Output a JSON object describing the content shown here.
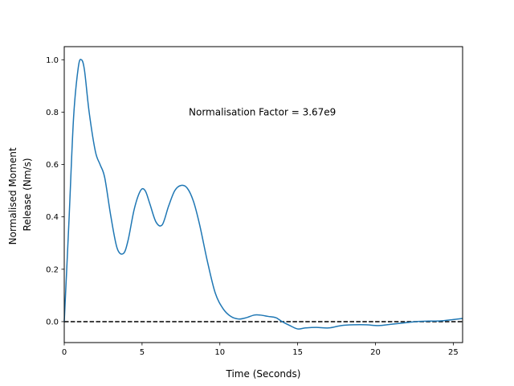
{
  "chart_data": {
    "type": "line",
    "title": "",
    "xlabel": "Time (Seconds)",
    "ylabel_lines": [
      "Normalised Moment",
      "Release (Nm/s)"
    ],
    "xlim": [
      0,
      25.6
    ],
    "ylim": [
      -0.08,
      1.05
    ],
    "xticks": [
      0,
      5,
      10,
      15,
      20,
      25
    ],
    "yticks": [
      0.0,
      0.2,
      0.4,
      0.6,
      0.8,
      1.0
    ],
    "grid": false,
    "annotation": {
      "text": "Normalisation Factor = 3.67e9",
      "x": 8.0,
      "y": 0.8
    },
    "reference_line": {
      "y": 0.0,
      "style": "dashed",
      "color": "#000000"
    },
    "series": [
      {
        "color": "#1f77b4",
        "x": [
          0,
          0.3,
          0.6,
          0.9,
          1.1,
          1.3,
          1.6,
          2.0,
          2.3,
          2.6,
          3.0,
          3.4,
          3.8,
          4.1,
          4.5,
          4.9,
          5.2,
          5.5,
          5.9,
          6.3,
          6.7,
          7.1,
          7.5,
          7.9,
          8.3,
          8.7,
          9.2,
          9.7,
          10.2,
          10.7,
          11.2,
          11.7,
          12.2,
          12.6,
          13.1,
          13.6,
          14.0,
          14.5,
          15.0,
          15.5,
          16.2,
          17.0,
          17.8,
          18.6,
          19.4,
          20.2,
          21.0,
          21.8,
          22.6,
          23.4,
          24.2,
          25.0,
          25.6
        ],
        "y": [
          0.0,
          0.38,
          0.78,
          0.97,
          1.0,
          0.96,
          0.8,
          0.65,
          0.6,
          0.55,
          0.4,
          0.28,
          0.26,
          0.31,
          0.43,
          0.5,
          0.5,
          0.45,
          0.38,
          0.37,
          0.44,
          0.5,
          0.52,
          0.51,
          0.46,
          0.37,
          0.23,
          0.11,
          0.05,
          0.02,
          0.01,
          0.015,
          0.025,
          0.025,
          0.02,
          0.015,
          0.0,
          -0.015,
          -0.028,
          -0.024,
          -0.022,
          -0.024,
          -0.015,
          -0.012,
          -0.012,
          -0.015,
          -0.01,
          -0.005,
          0.0,
          0.002,
          0.003,
          0.008,
          0.012
        ]
      }
    ]
  }
}
